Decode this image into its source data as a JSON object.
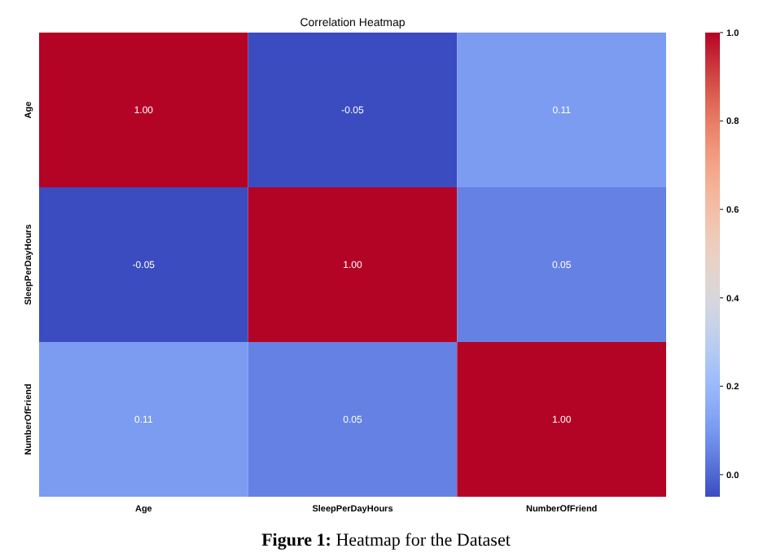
{
  "chart_data": {
    "type": "heatmap",
    "title": "Correlation Heatmap",
    "categories": [
      "Age",
      "SleepPerDayHours",
      "NumberOfFriend"
    ],
    "y_categories": [
      "Age",
      "SleepPerDayHours",
      "NumberOfFriend"
    ],
    "cells": [
      [
        1.0,
        -0.05,
        0.11
      ],
      [
        -0.05,
        1.0,
        0.05
      ],
      [
        0.11,
        0.05,
        1.0
      ]
    ],
    "cell_labels": [
      [
        "1.00",
        "-0.05",
        "0.11"
      ],
      [
        "-0.05",
        "1.00",
        "0.05"
      ],
      [
        "0.11",
        "0.05",
        "1.00"
      ]
    ],
    "clim": [
      -0.05,
      1.0
    ],
    "cticks": [
      {
        "value": 0,
        "label": "0.0"
      },
      {
        "value": 0.2,
        "label": "0.2"
      },
      {
        "value": 0.4,
        "label": "0.4"
      },
      {
        "value": 0.6,
        "label": "0.6"
      },
      {
        "value": 0.8,
        "label": "0.8"
      },
      {
        "value": 1.0,
        "label": "1.0"
      }
    ],
    "annotations": [
      "Figure 1: Heatmap for the Dataset"
    ]
  }
}
